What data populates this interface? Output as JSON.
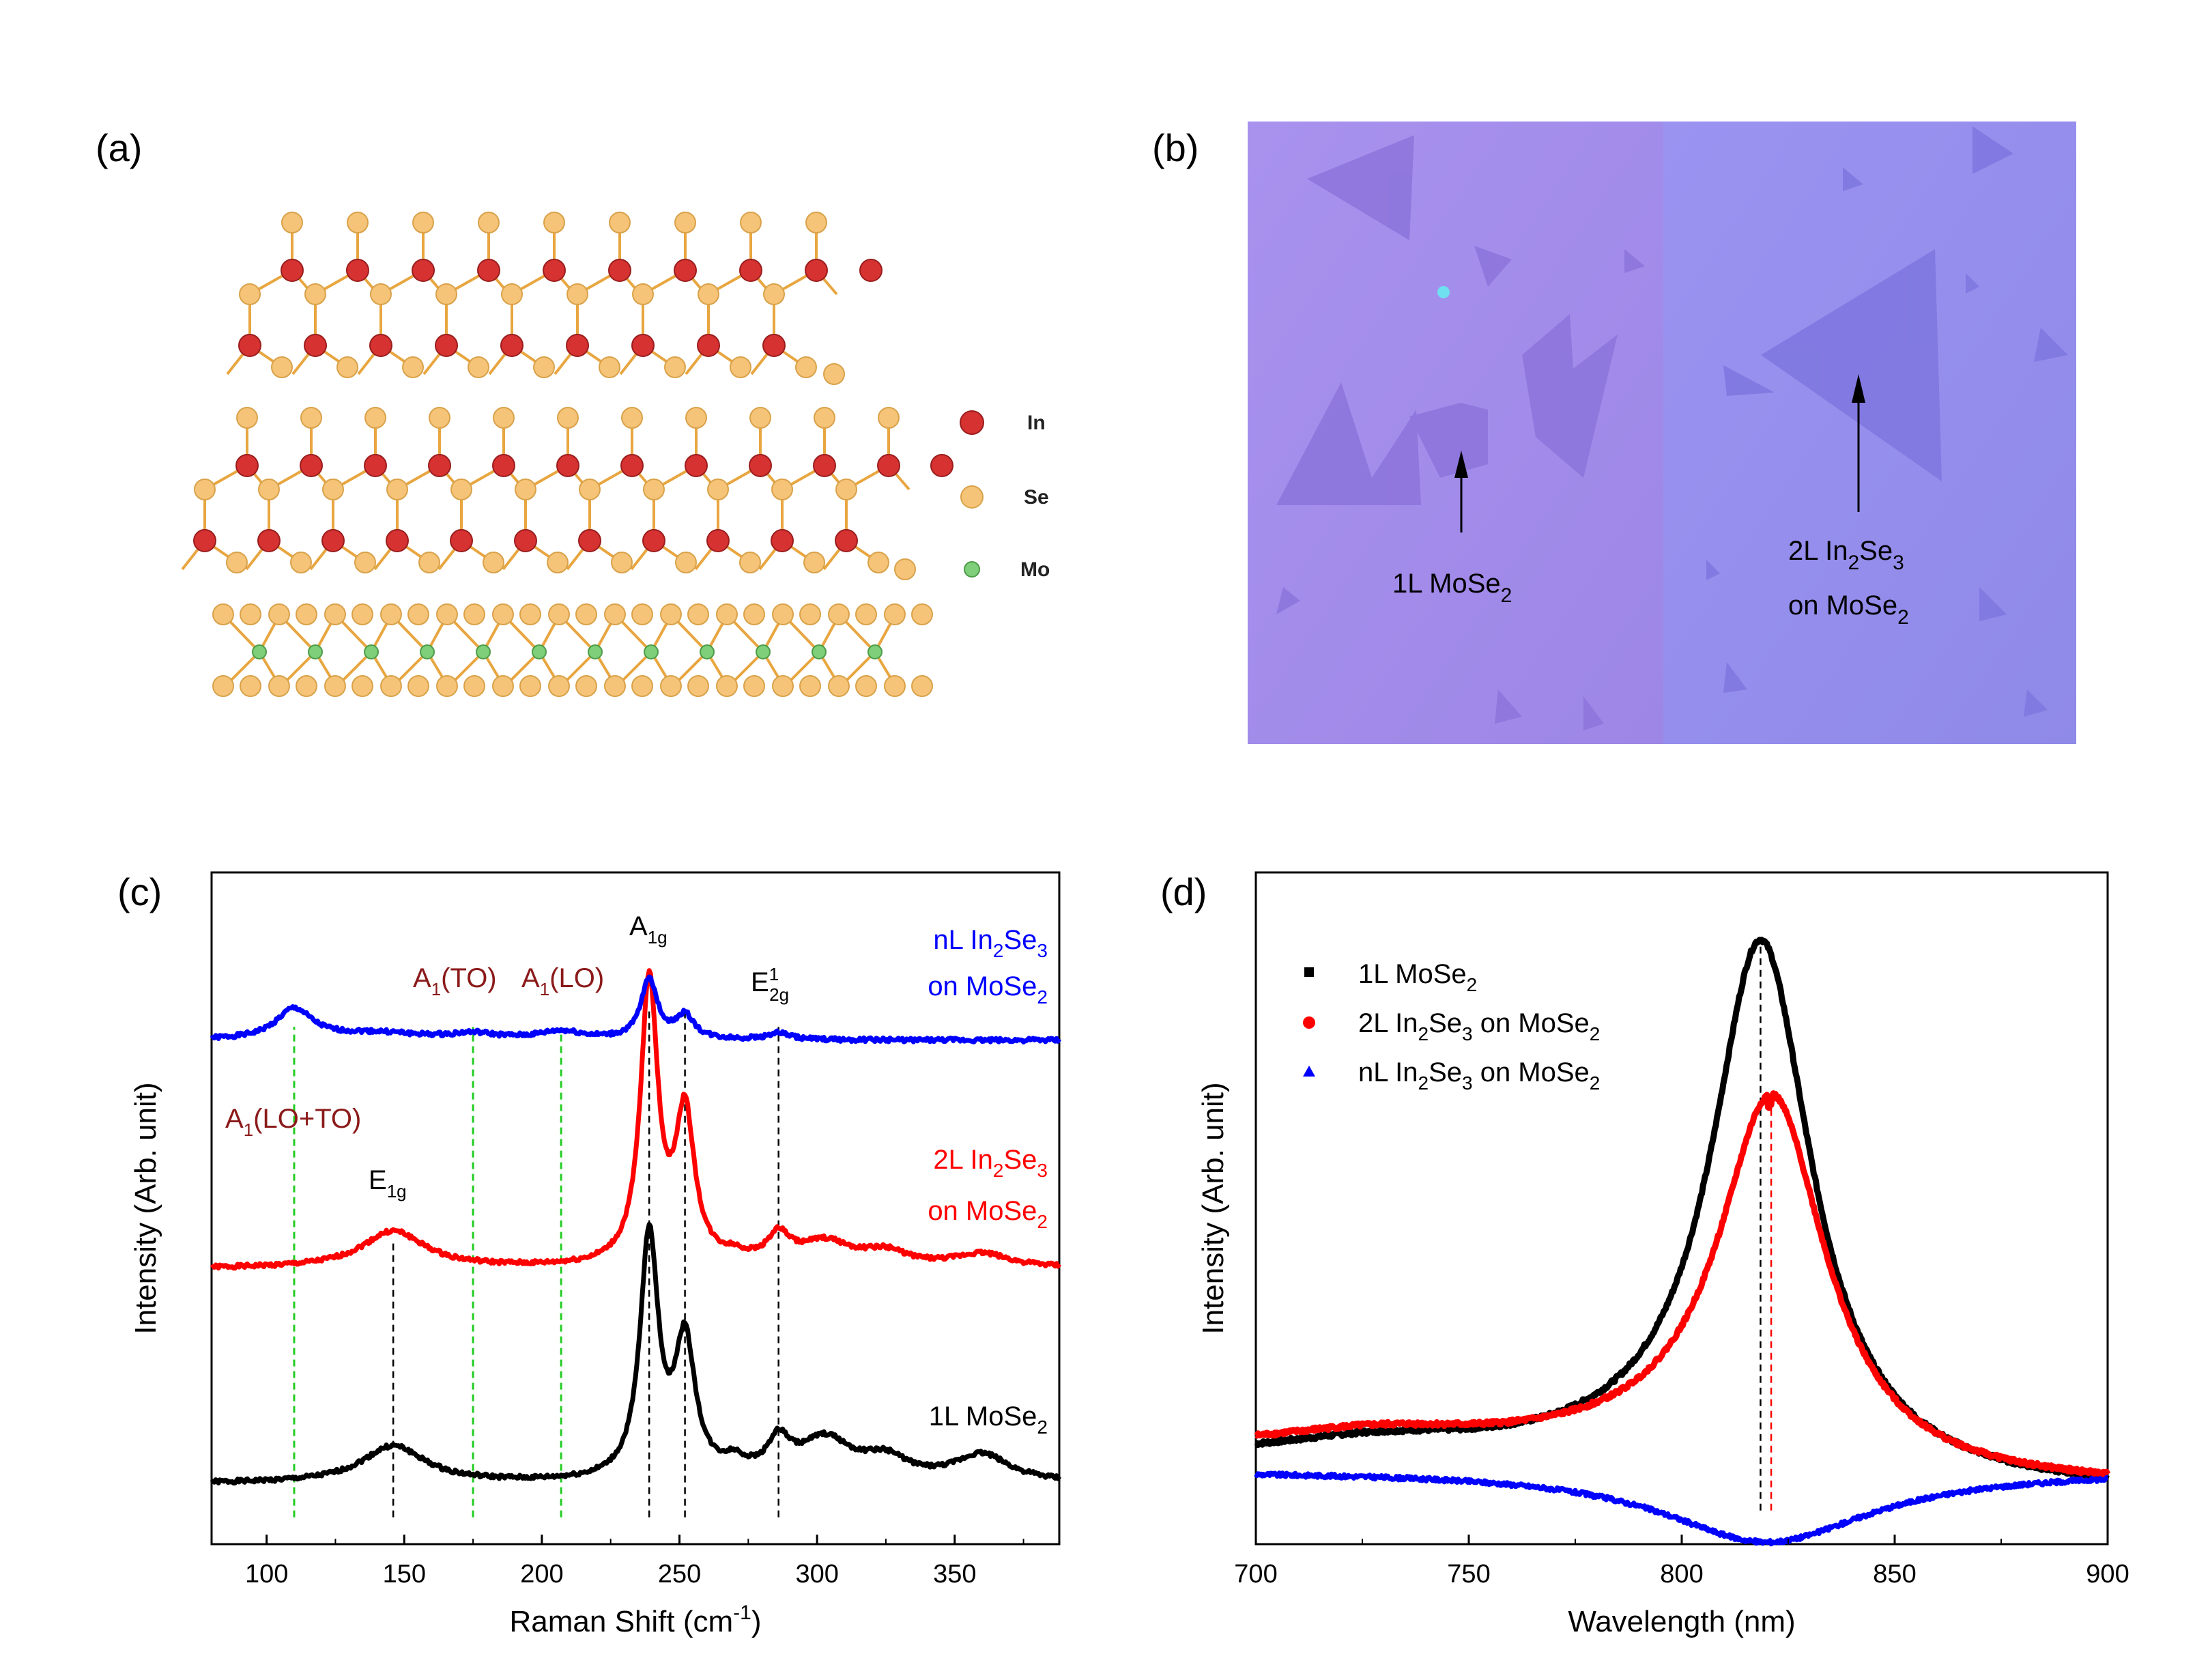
{
  "panels": {
    "a": {
      "label": "(a)",
      "legend": [
        {
          "name": "In",
          "color": "#d63232"
        },
        {
          "name": "Se",
          "color": "#f5c478"
        },
        {
          "name": "Mo",
          "color": "#7fce7a"
        }
      ]
    },
    "b": {
      "label": "(b)",
      "label_1L": {
        "main": "1L MoSe",
        "sub": "2"
      },
      "label_2L": {
        "line1_main": "2L In",
        "line1_sub1": "2",
        "line1_mid": "Se",
        "line1_sub2": "3",
        "line2_main": "on MoSe",
        "line2_sub": "2"
      }
    },
    "c": {
      "label": "(c)",
      "xlabel": {
        "main": "Raman Shift (cm",
        "sup": "-1",
        "tail": ")"
      },
      "ylabel": "Intensity (Arb. unit)",
      "series_labels": {
        "nL": {
          "line1": "nL In",
          "s1": "2",
          "m": "Se",
          "s2": "3",
          "line2": "on MoSe",
          "s3": "2",
          "color": "#0000ff"
        },
        "2L": {
          "line1": "2L In",
          "s1": "2",
          "m": "Se",
          "s2": "3",
          "line2": "on MoSe",
          "s3": "2",
          "color": "#ff0000"
        },
        "1L": {
          "line1": "1L MoSe",
          "s1": "2",
          "color": "#000000"
        }
      },
      "peak_labels": {
        "A1g": {
          "main": "A",
          "sub": "1g"
        },
        "E12g": {
          "main": "E",
          "sup": "1",
          "sub": "2g"
        },
        "E1g": {
          "main": "E",
          "sub": "1g"
        },
        "A1TO": {
          "main": "A",
          "sub": "1",
          "tail": "(TO)"
        },
        "A1LO": {
          "main": "A",
          "sub": "1",
          "tail": "(LO)"
        },
        "A1LOTO": {
          "main": "A",
          "sub": "1",
          "tail": "(LO+TO)"
        }
      }
    },
    "d": {
      "label": "(d)",
      "xlabel": "Wavelength (nm)",
      "ylabel": "Intensity (Arb. unit)",
      "legend": [
        {
          "main": "1L MoSe",
          "s1": "2",
          "color": "#000000",
          "marker": "square"
        },
        {
          "main": "2L In",
          "s1": "2",
          "m": "Se",
          "s2": "3",
          "tail": " on MoSe",
          "s3": "2",
          "color": "#ff0000",
          "marker": "circle"
        },
        {
          "main": "nL In",
          "s1": "2",
          "m": "Se",
          "s2": "3",
          "tail": " on MoSe",
          "s3": "2",
          "color": "#0000ff",
          "marker": "triangle"
        }
      ]
    }
  },
  "chart_data": [
    {
      "type": "line",
      "panel": "c",
      "xlim": [
        80,
        388
      ],
      "ylim": [
        0,
        1
      ],
      "xticks": [
        100,
        150,
        200,
        250,
        300,
        350
      ],
      "vlines_green": [
        110,
        175,
        207
      ],
      "vlines_black": [
        146,
        239,
        252,
        286
      ],
      "series": [
        {
          "name": "1L MoSe2",
          "color": "#000000",
          "offset": 0.09,
          "peaks": [
            [
              146,
              0.055,
              14
            ],
            [
              239,
              0.36,
              4.0
            ],
            [
              252,
              0.2,
              4.5
            ],
            [
              270,
              0.02,
              5
            ],
            [
              286,
              0.05,
              5
            ],
            [
              303,
              0.06,
              12
            ],
            [
              325,
              0.03,
              10
            ],
            [
              360,
              0.04,
              12
            ]
          ]
        },
        {
          "name": "2L In2Se3 on MoSe2",
          "color": "#ff0000",
          "offset": 0.41,
          "peaks": [
            [
              146,
              0.055,
              14
            ],
            [
              239,
              0.42,
              3.8
            ],
            [
              252,
              0.22,
              4.2
            ],
            [
              270,
              0.01,
              5
            ],
            [
              286,
              0.04,
              5
            ],
            [
              303,
              0.035,
              12
            ],
            [
              325,
              0.02,
              10
            ],
            [
              360,
              0.02,
              12
            ]
          ]
        },
        {
          "name": "nL In2Se3 on MoSe2",
          "color": "#0000ff",
          "offset": 0.75,
          "peaks": [
            [
              110,
              0.045,
              8
            ],
            [
              140,
              0.01,
              20
            ],
            [
              175,
              0.008,
              10
            ],
            [
              207,
              0.012,
              10
            ],
            [
              239,
              0.09,
              3.5
            ],
            [
              252,
              0.035,
              4.0
            ],
            [
              286,
              0.01,
              5
            ]
          ]
        }
      ]
    },
    {
      "type": "scatter",
      "panel": "d",
      "xlim": [
        700,
        900
      ],
      "ylim": [
        0,
        1
      ],
      "xticks": [
        700,
        750,
        800,
        850,
        900
      ],
      "vlines": [
        {
          "x": 818.5,
          "color": "#000000"
        },
        {
          "x": 821,
          "color": "#ff0000"
        }
      ],
      "series": [
        {
          "name": "1L MoSe2",
          "color": "#000000",
          "baseline": 0.135,
          "peak_x": 818.5,
          "peak_y": 0.9,
          "hwhm": 14
        },
        {
          "name": "2L In2Se3 on MoSe2",
          "color": "#ff0000",
          "baseline": 0.15,
          "peak_x": 821,
          "peak_y": 0.67,
          "hwhm": 15
        },
        {
          "name": "nL In2Se3 on MoSe2",
          "color": "#0000ff",
          "baseline": 0.11,
          "peak_x": 820,
          "peak_y": 0.003,
          "hwhm": 30
        }
      ]
    }
  ]
}
